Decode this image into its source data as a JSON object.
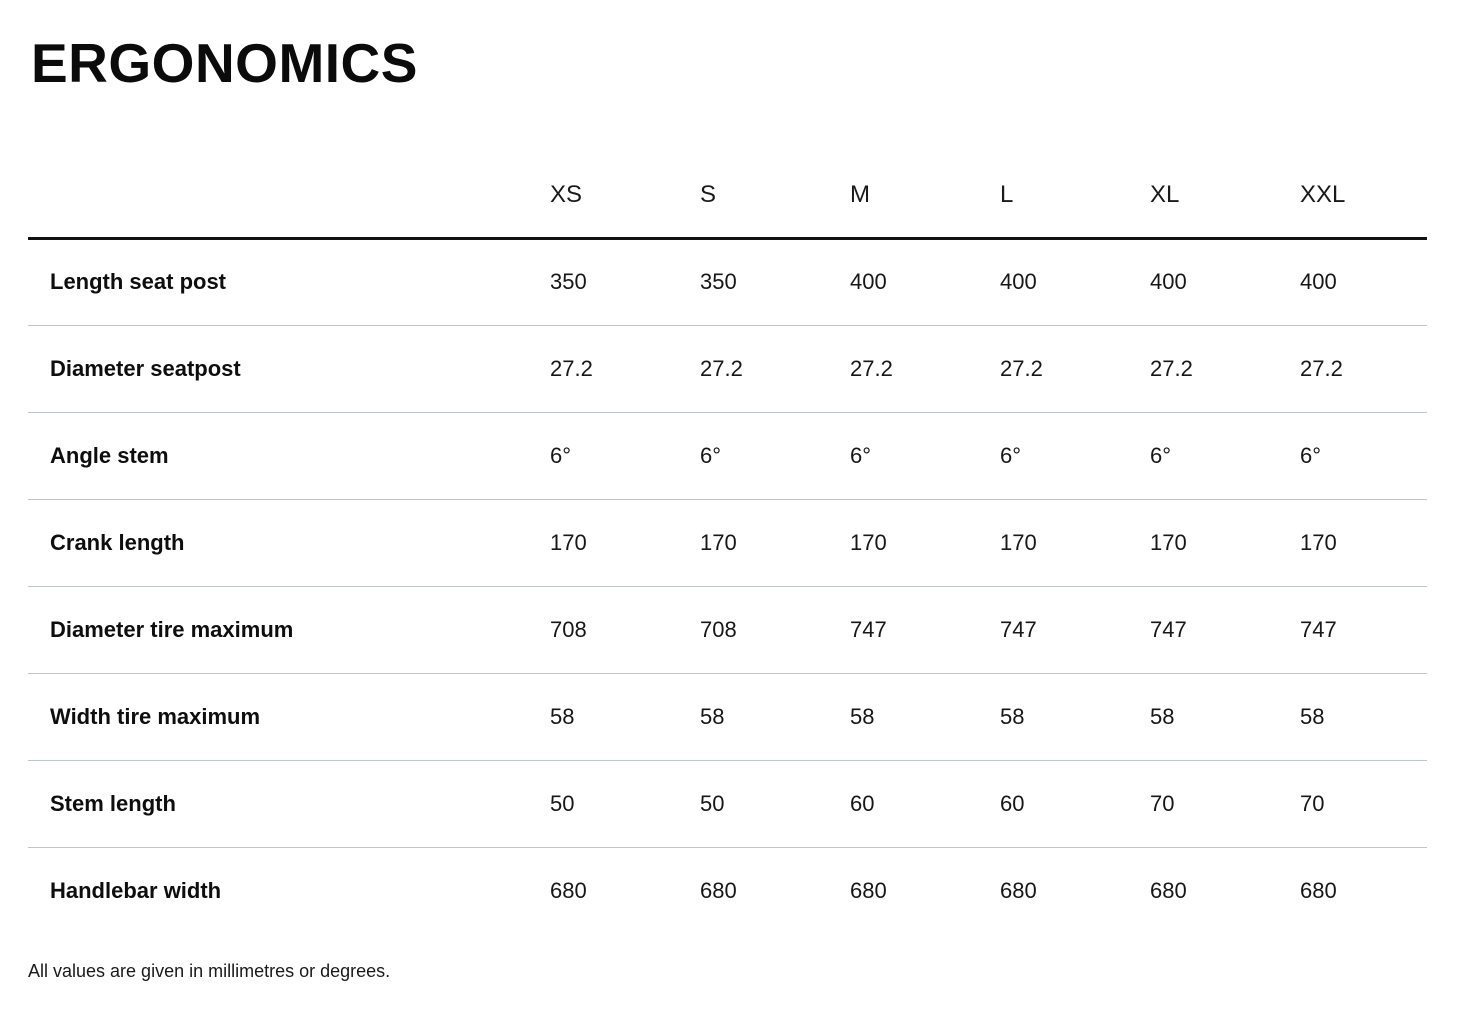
{
  "page": {
    "title": "ERGONOMICS",
    "footnote": "All values are given in millimetres or degrees."
  },
  "table": {
    "columns": [
      "XS",
      "S",
      "M",
      "L",
      "XL",
      "XXL"
    ],
    "rows": [
      {
        "label": "Length seat post",
        "values": [
          "350",
          "350",
          "400",
          "400",
          "400",
          "400"
        ]
      },
      {
        "label": "Diameter seatpost",
        "values": [
          "27.2",
          "27.2",
          "27.2",
          "27.2",
          "27.2",
          "27.2"
        ]
      },
      {
        "label": "Angle stem",
        "values": [
          "6°",
          "6°",
          "6°",
          "6°",
          "6°",
          "6°"
        ]
      },
      {
        "label": "Crank length",
        "values": [
          "170",
          "170",
          "170",
          "170",
          "170",
          "170"
        ]
      },
      {
        "label": "Diameter tire maximum",
        "values": [
          "708",
          "708",
          "747",
          "747",
          "747",
          "747"
        ]
      },
      {
        "label": "Width tire maximum",
        "values": [
          "58",
          "58",
          "58",
          "58",
          "58",
          "58"
        ]
      },
      {
        "label": "Stem length",
        "values": [
          "50",
          "50",
          "60",
          "60",
          "70",
          "70"
        ]
      },
      {
        "label": "Handlebar width",
        "values": [
          "680",
          "680",
          "680",
          "680",
          "680",
          "680"
        ]
      }
    ]
  },
  "colors": {
    "background": "#ffffff",
    "text": "#161616",
    "title": "#0b0b0b",
    "header_rule": "#121212",
    "row_divider": "#bfc7cb"
  }
}
